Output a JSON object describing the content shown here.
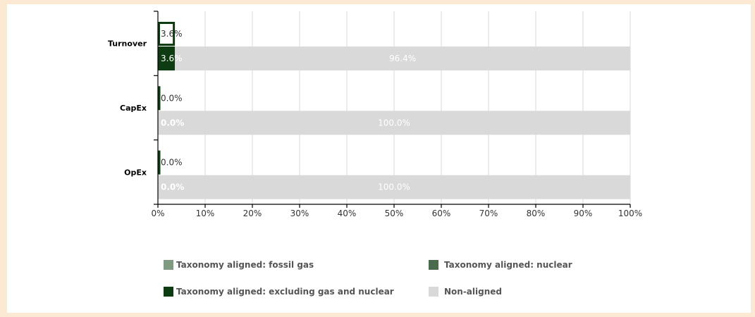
{
  "chart_data": {
    "type": "bar",
    "orientation": "horizontal",
    "categories": [
      "Turnover",
      "CapEx",
      "OpEx"
    ],
    "xlim": [
      0,
      100
    ],
    "x_ticks": [
      "0%",
      "10%",
      "20%",
      "30%",
      "40%",
      "50%",
      "60%",
      "70%",
      "80%",
      "90%",
      "100%"
    ],
    "grid": true,
    "legend_position": "bottom",
    "groups": [
      {
        "name": "",
        "stacked": false,
        "series": [
          {
            "name": "Taxonomy aligned: excluding gas and nuclear",
            "style": "outline",
            "values": [
              3.6,
              0.0,
              0.0
            ],
            "labels": [
              "3.6%",
              "0.0%",
              "0.0%"
            ]
          }
        ]
      },
      {
        "name": "",
        "stacked": true,
        "series": [
          {
            "name": "Taxonomy aligned: excluding gas and nuclear",
            "values": [
              3.6,
              0.0,
              0.0
            ],
            "labels": [
              "3.6%",
              "0.0%",
              "0.0%"
            ]
          },
          {
            "name": "Non-aligned",
            "values": [
              96.4,
              100.0,
              100.0
            ],
            "labels": [
              "96.4%",
              "100.0%",
              "100.0%"
            ]
          }
        ]
      }
    ],
    "legend": [
      {
        "label": "Taxonomy aligned: fossil gas",
        "color": "#7e9a80"
      },
      {
        "label": "Taxonomy aligned: nuclear",
        "color": "#4a6b4d"
      },
      {
        "label": "Taxonomy aligned: excluding gas and nuclear",
        "color": "#0d3b12"
      },
      {
        "label": "Non-aligned",
        "color": "#d9d9d9"
      }
    ]
  },
  "colors": {
    "page_background": "#fbe9d4",
    "panel_background": "#ffffff",
    "excluding_gas_nuclear": "#0d3b12",
    "non_aligned": "#d9d9d9",
    "grid": "#e0e0e0"
  }
}
